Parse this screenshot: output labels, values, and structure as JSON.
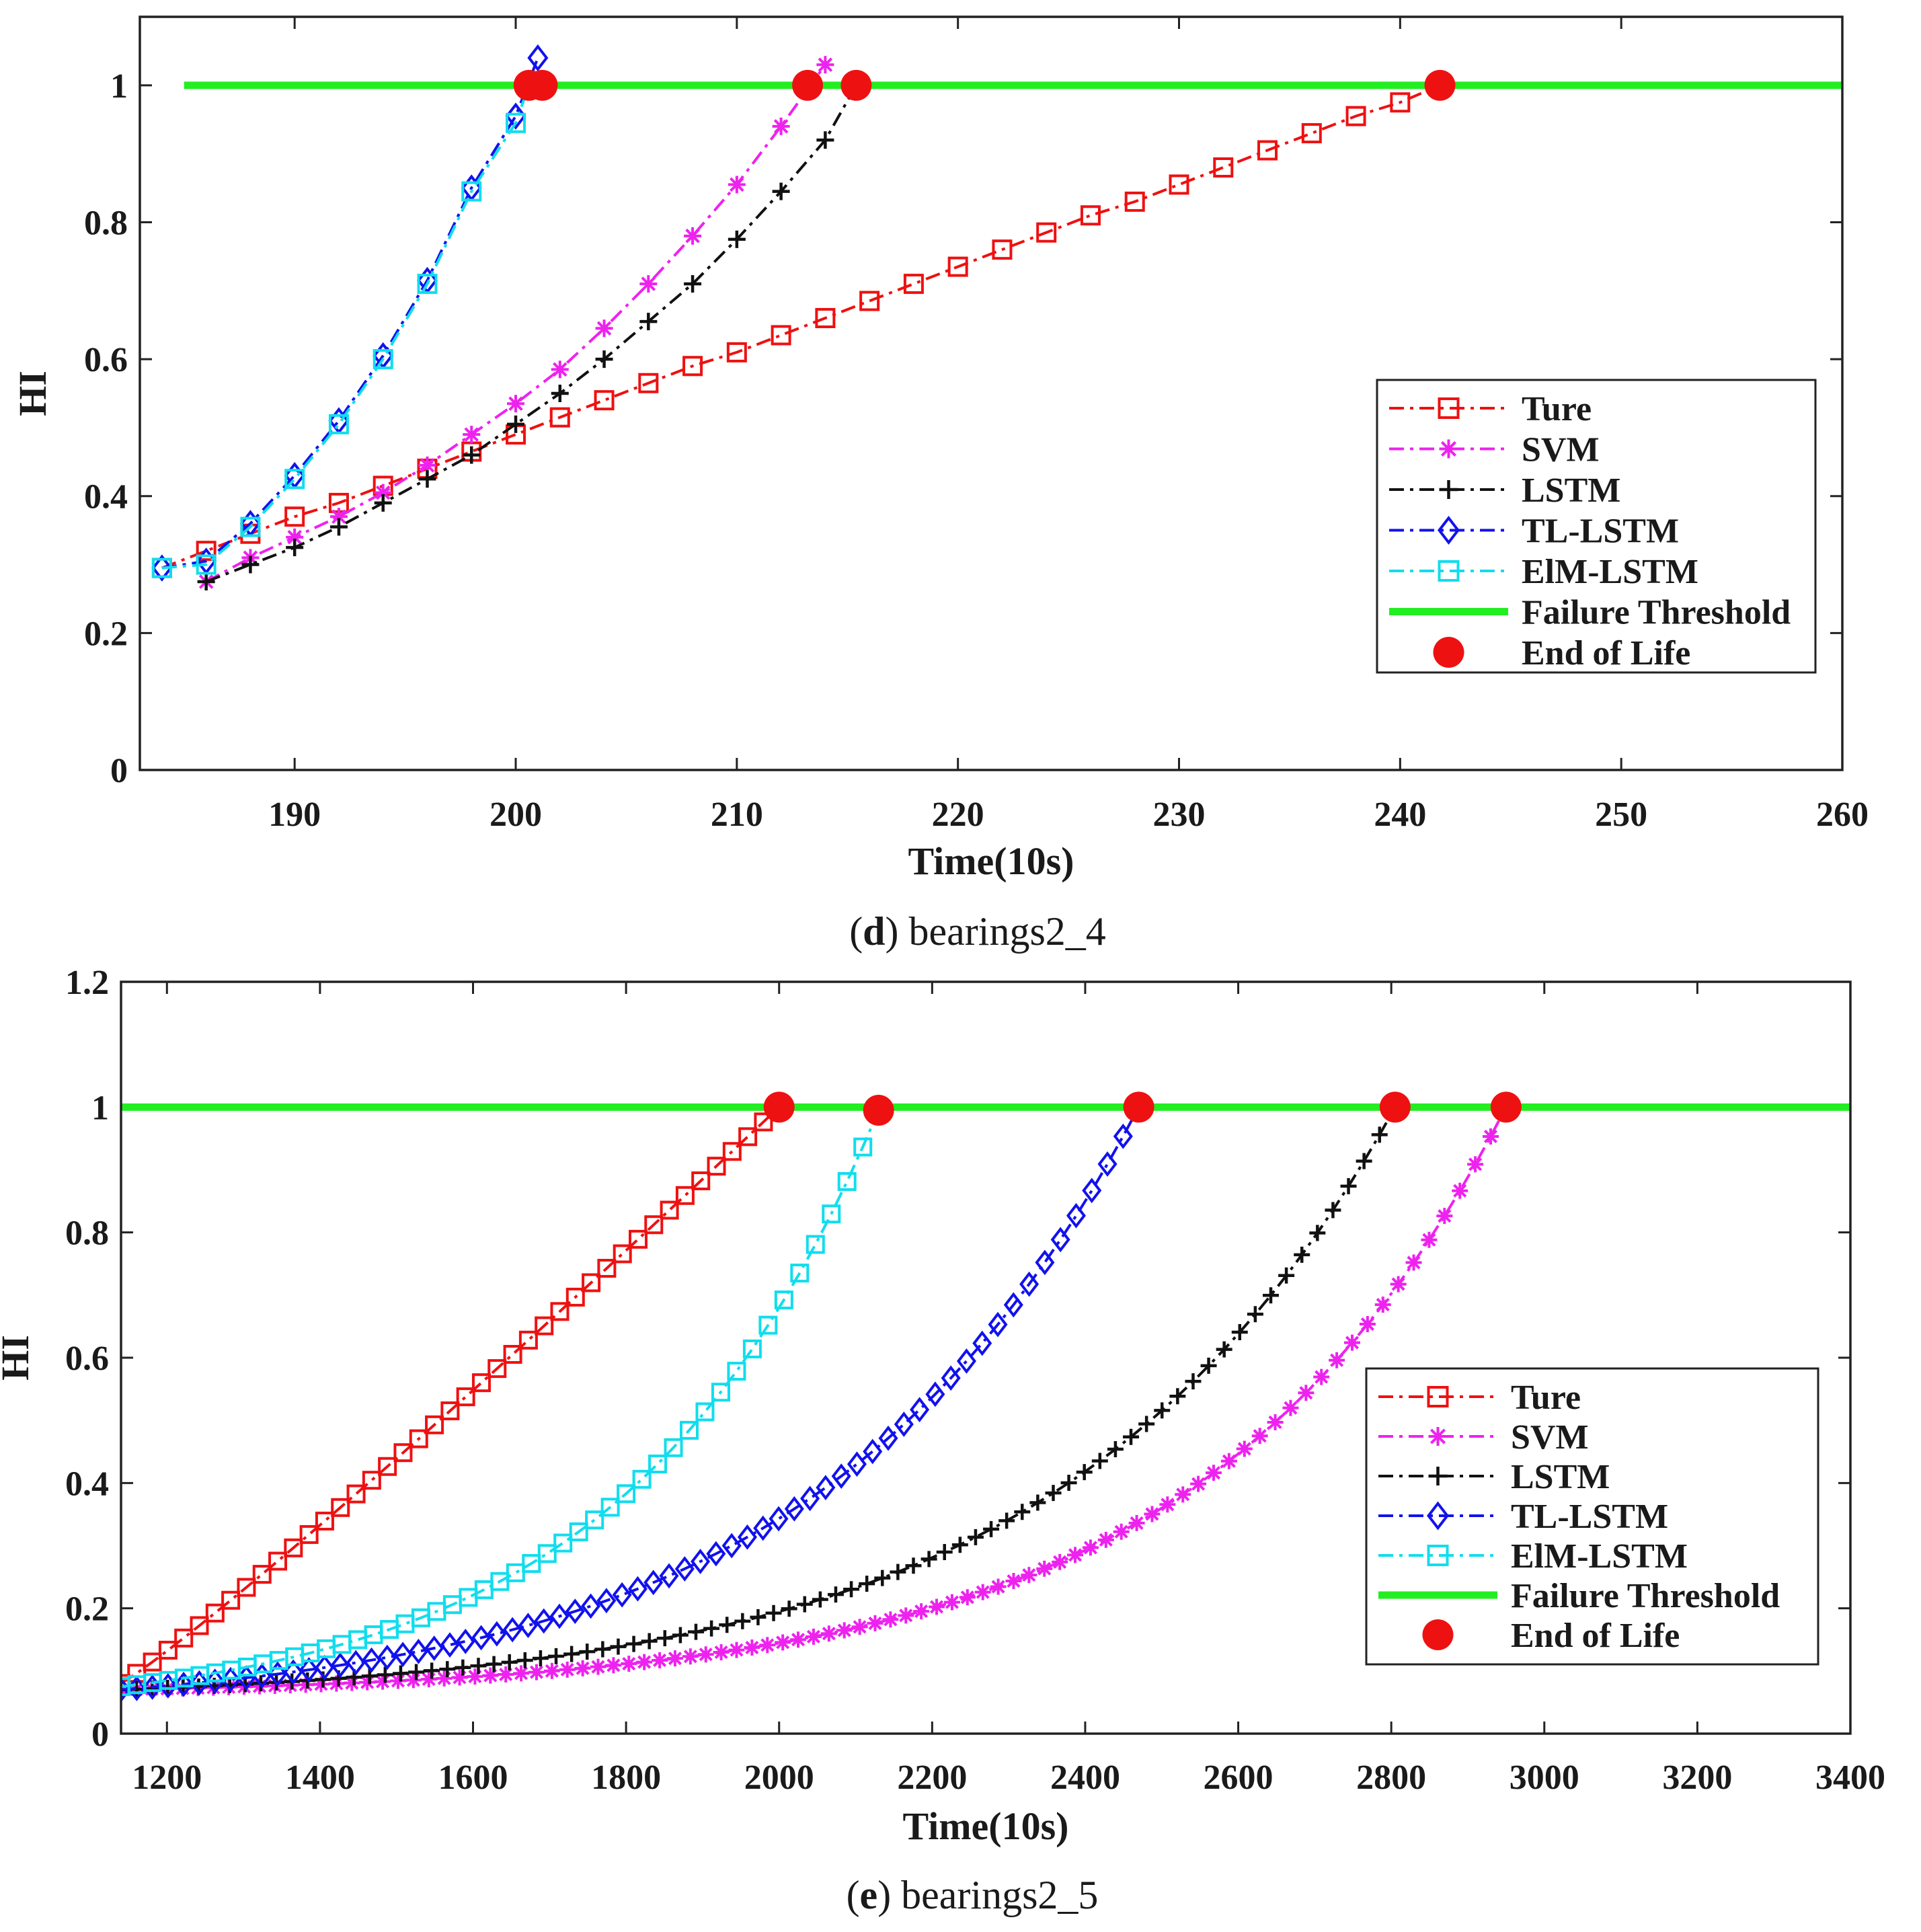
{
  "chart_data": [
    {
      "type": "line",
      "caption_letter": "d",
      "caption_text": "bearings2_4",
      "xlabel": "Time(10s)",
      "ylabel": "HI",
      "xlim": [
        183,
        260
      ],
      "ylim": [
        0,
        1.1
      ],
      "xticks": [
        190,
        200,
        210,
        220,
        230,
        240,
        250,
        260
      ],
      "yticks": [
        0,
        0.2,
        0.4,
        0.6,
        0.8,
        1
      ],
      "ytick_labels": [
        "0",
        "0.2",
        "0.4",
        "0.6",
        "0.8",
        "1"
      ],
      "legend_position": "middle-right",
      "threshold": {
        "name": "Failure Threshold",
        "value": 1,
        "x_range": [
          185,
          260
        ],
        "color": "#22ee22"
      },
      "end_of_life": {
        "name": "End of Life",
        "color": "#ee1111",
        "points": [
          [
            200.6,
            1.0
          ],
          [
            201.2,
            1.0
          ],
          [
            213.2,
            1.0
          ],
          [
            215.4,
            1.0
          ],
          [
            241.8,
            1.0
          ]
        ]
      },
      "series": [
        {
          "name": "Ture",
          "color": "#ee1111",
          "marker": "square",
          "x": [
            184,
            186,
            188,
            190,
            192,
            194,
            196,
            198,
            200,
            202,
            204,
            206,
            208,
            210,
            212,
            214,
            216,
            218,
            220,
            222,
            224,
            226,
            228,
            230,
            232,
            234,
            236,
            238,
            240,
            241.8
          ],
          "y": [
            0.295,
            0.32,
            0.345,
            0.37,
            0.39,
            0.415,
            0.44,
            0.465,
            0.49,
            0.515,
            0.54,
            0.565,
            0.59,
            0.61,
            0.635,
            0.66,
            0.685,
            0.71,
            0.735,
            0.76,
            0.785,
            0.81,
            0.83,
            0.855,
            0.88,
            0.905,
            0.93,
            0.955,
            0.975,
            1.0
          ]
        },
        {
          "name": "SVM",
          "color": "#ee22ee",
          "marker": "asterisk",
          "x": [
            186,
            188,
            190,
            192,
            194,
            196,
            198,
            200,
            202,
            204,
            206,
            208,
            210,
            212,
            214
          ],
          "y": [
            0.275,
            0.31,
            0.34,
            0.37,
            0.405,
            0.445,
            0.49,
            0.535,
            0.585,
            0.645,
            0.71,
            0.78,
            0.855,
            0.94,
            1.03
          ]
        },
        {
          "name": "LSTM",
          "color": "#111111",
          "marker": "plus",
          "x": [
            186,
            188,
            190,
            192,
            194,
            196,
            198,
            200,
            202,
            204,
            206,
            208,
            210,
            212,
            214,
            215.4
          ],
          "y": [
            0.275,
            0.3,
            0.325,
            0.355,
            0.39,
            0.425,
            0.46,
            0.505,
            0.55,
            0.6,
            0.655,
            0.71,
            0.775,
            0.845,
            0.92,
            1.0
          ]
        },
        {
          "name": "TL-LSTM",
          "color": "#1111ee",
          "marker": "diamond",
          "x": [
            184,
            186,
            188,
            190,
            192,
            194,
            196,
            198,
            200,
            201
          ],
          "y": [
            0.295,
            0.305,
            0.36,
            0.43,
            0.51,
            0.605,
            0.715,
            0.85,
            0.955,
            1.04
          ]
        },
        {
          "name": "ElM-LSTM",
          "color": "#11ddee",
          "marker": "square",
          "x": [
            184,
            186,
            188,
            190,
            192,
            194,
            196,
            198,
            200,
            200.6
          ],
          "y": [
            0.295,
            0.3,
            0.355,
            0.425,
            0.505,
            0.6,
            0.71,
            0.845,
            0.945,
            1.0
          ]
        }
      ]
    },
    {
      "type": "line",
      "caption_letter": "e",
      "caption_text": "bearings2_5",
      "xlabel": "Time(10s)",
      "ylabel": "HI",
      "xlim": [
        1140,
        3400
      ],
      "ylim": [
        0,
        1.2
      ],
      "xticks": [
        1200,
        1400,
        1600,
        1800,
        2000,
        2200,
        2400,
        2600,
        2800,
        3000,
        3200,
        3400
      ],
      "yticks": [
        0,
        0.2,
        0.4,
        0.6,
        0.8,
        1,
        1.2
      ],
      "ytick_labels": [
        "0",
        "0.2",
        "0.4",
        "0.6",
        "0.8",
        "1",
        "1.2"
      ],
      "legend_position": "middle-right",
      "threshold": {
        "name": "Failure Threshold",
        "value": 1,
        "x_range": [
          1140,
          3400
        ],
        "color": "#22ee22"
      },
      "end_of_life": {
        "name": "End of Life",
        "color": "#ee1111",
        "points": [
          [
            2000,
            1.0
          ],
          [
            2130,
            0.995
          ],
          [
            2470,
            1.0
          ],
          [
            2805,
            1.0
          ],
          [
            2950,
            1.0
          ]
        ]
      },
      "series": [
        {
          "name": "Ture",
          "color": "#ee1111",
          "marker": "square",
          "model": "poly",
          "p": 1.08,
          "x_start": 1140,
          "x_end": 2000,
          "y_start": 0.08,
          "y_end": 1.0,
          "n": 42
        },
        {
          "name": "SVM",
          "color": "#ee22ee",
          "marker": "asterisk",
          "model": "exp",
          "k": 4.6,
          "x_start": 1140,
          "x_end": 2950,
          "y_start": 0.07,
          "y_end": 1.0,
          "n": 90
        },
        {
          "name": "LSTM",
          "color": "#111111",
          "marker": "plus",
          "model": "exp",
          "k": 3.9,
          "x_start": 1140,
          "x_end": 2805,
          "y_start": 0.07,
          "y_end": 1.0,
          "n": 82
        },
        {
          "name": "TL-LSTM",
          "color": "#1111ee",
          "marker": "diamond",
          "model": "exp",
          "k": 3.2,
          "x_start": 1140,
          "x_end": 2470,
          "y_start": 0.07,
          "y_end": 1.0,
          "n": 65
        },
        {
          "name": "ElM-LSTM",
          "color": "#11ddee",
          "marker": "square",
          "model": "exp",
          "k": 3.0,
          "x_start": 1140,
          "x_end": 2130,
          "y_start": 0.075,
          "y_end": 0.995,
          "n": 48
        }
      ]
    }
  ]
}
